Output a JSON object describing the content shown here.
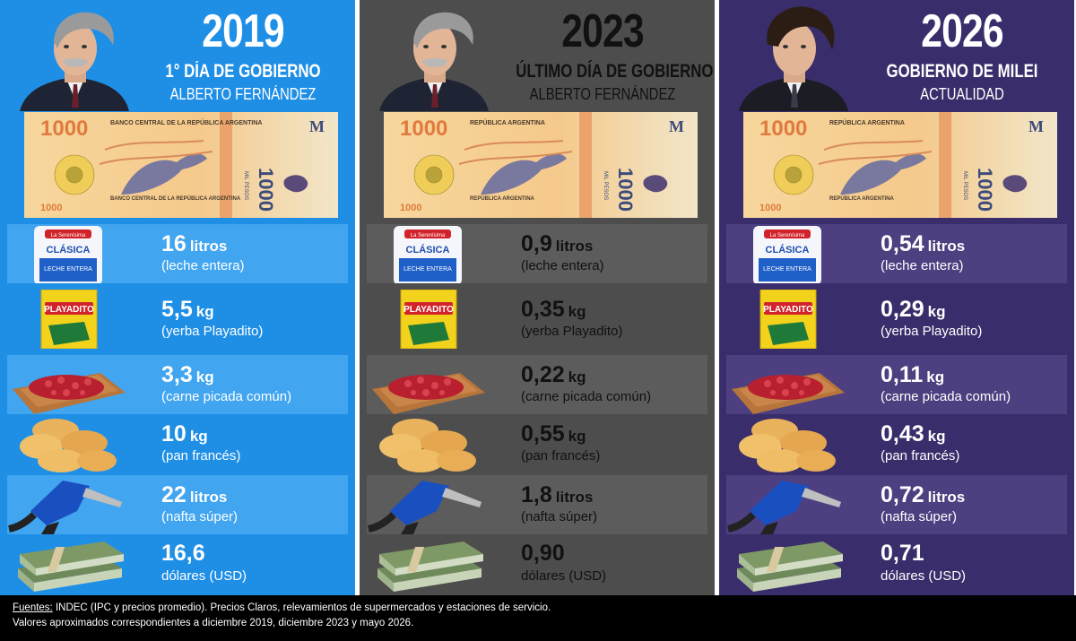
{
  "colors": {
    "col2019": "#1f8fe6",
    "col2023": "#4d4d4d",
    "col2026": "#3a2d6b"
  },
  "columns": [
    {
      "year": "2019",
      "subtitle": "1° DÍA DE GOBIERNO",
      "name": "ALBERTO FERNÁNDEZ",
      "portrait_icon": "politician-portrait",
      "banknote": {
        "value": "1000",
        "issuer": "BANCO CENTRAL DE LA REPÚBLICA ARGENTINA",
        "series_letter": "M",
        "side_text": "MIL PESOS"
      },
      "items": [
        {
          "icon": "milk-bag-icon",
          "value": "16",
          "unit": "litros",
          "label": "(leche entera)"
        },
        {
          "icon": "yerba-package-icon",
          "value": "5,5",
          "unit": "kg",
          "label": "(yerba Playadito)"
        },
        {
          "icon": "ground-meat-icon",
          "value": "3,3",
          "unit": "kg",
          "label": "(carne picada común)"
        },
        {
          "icon": "bread-icon",
          "value": "10",
          "unit": "kg",
          "label": "(pan francés)"
        },
        {
          "icon": "fuel-nozzle-icon",
          "value": "22",
          "unit": "litros",
          "label": "(nafta súper)"
        },
        {
          "icon": "dollar-stack-icon",
          "value": "16,6",
          "unit": "",
          "label": "dólares (USD)"
        }
      ]
    },
    {
      "year": "2023",
      "subtitle": "ÚLTIMO DÍA DE GOBIERNO",
      "name": "ALBERTO FERNÁNDEZ",
      "portrait_icon": "politician-portrait",
      "banknote": {
        "value": "1000",
        "issuer": "REPÚBLICA ARGENTINA",
        "series_letter": "M",
        "side_text": "MIL PESOS"
      },
      "items": [
        {
          "icon": "milk-bag-icon",
          "value": "0,9",
          "unit": "litros",
          "label": "(leche entera)"
        },
        {
          "icon": "yerba-package-icon",
          "value": "0,35",
          "unit": "kg",
          "label": "(yerba Playadito)"
        },
        {
          "icon": "ground-meat-icon",
          "value": "0,22",
          "unit": "kg",
          "label": "(carne picada común)"
        },
        {
          "icon": "bread-icon",
          "value": "0,55",
          "unit": "kg",
          "label": "(pan francés)"
        },
        {
          "icon": "fuel-nozzle-icon",
          "value": "1,8",
          "unit": "litros",
          "label": "(nafta súper)"
        },
        {
          "icon": "dollar-stack-icon",
          "value": "0,90",
          "unit": "",
          "label": "dólares (USD)"
        }
      ]
    },
    {
      "year": "2026",
      "subtitle": "GOBIERNO DE MILEI",
      "name": "ACTUALIDAD",
      "portrait_icon": "politician-portrait",
      "banknote": {
        "value": "1000",
        "issuer": "REPÚBLICA ARGENTINA",
        "series_letter": "M",
        "side_text": "MIL PESOS"
      },
      "items": [
        {
          "icon": "milk-bag-icon",
          "value": "0,54",
          "unit": "litros",
          "label": "(leche entera)"
        },
        {
          "icon": "yerba-package-icon",
          "value": "0,29",
          "unit": "kg",
          "label": "(yerba Playadito)"
        },
        {
          "icon": "ground-meat-icon",
          "value": "0,11",
          "unit": "kg",
          "label": "(carne picada común)"
        },
        {
          "icon": "bread-icon",
          "value": "0,43",
          "unit": "kg",
          "label": "(pan francés)"
        },
        {
          "icon": "fuel-nozzle-icon",
          "value": "0,72",
          "unit": "litros",
          "label": "(nafta súper)"
        },
        {
          "icon": "dollar-stack-icon",
          "value": "0,71",
          "unit": "",
          "label": "dólares (USD)"
        }
      ]
    }
  ],
  "product_text": {
    "milk_brand": "La Serenísima",
    "milk_type": "CLÁSICA",
    "milk_desc": "LECHE ENTERA",
    "yerba_brand": "PLAYADITO"
  },
  "footer": {
    "sources_label": "Fuentes:",
    "sources_text": " INDEC (IPC y precios promedio). Precios Claros, relevamientos de supermercados y estaciones de servicio.",
    "note": "Valores aproximados correspondientes a diciembre 2019, diciembre 2023 y mayo 2026."
  }
}
